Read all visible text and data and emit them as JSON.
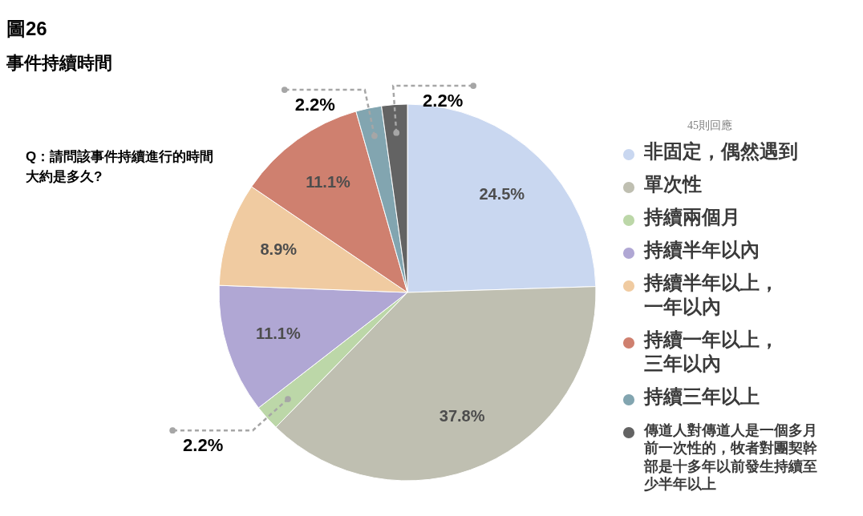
{
  "chart_data": {
    "type": "pie",
    "title": "圖26",
    "subtitle": "事件持續時間",
    "legend_title": "45則回應",
    "annotations": [
      "Q：請問該事件持續進行的時間大約是多久?"
    ],
    "categories": [
      "非固定，偶然遇到",
      "單次性",
      "持續兩個月",
      "持續半年以內",
      "持續半年以上，一年以內",
      "持續一年以上，三年以內",
      "持續三年以上",
      "傳道人對傳道人是一個多月前一次性的，牧者對團契幹部是十多年以前發生持續至少半年以上"
    ],
    "values": [
      24.5,
      37.8,
      2.2,
      11.1,
      8.9,
      11.1,
      2.2,
      2.2
    ],
    "colors": [
      "#c9d7f0",
      "#bfbfb1",
      "#bcd7a8",
      "#b0a7d4",
      "#f0cba1",
      "#cf806f",
      "#82a5b0",
      "#636363"
    ],
    "value_labels": [
      "24.5%",
      "37.8%",
      "2.2%",
      "11.1%",
      "8.9%",
      "11.1%",
      "2.2%",
      "2.2%"
    ],
    "legend": "right"
  }
}
